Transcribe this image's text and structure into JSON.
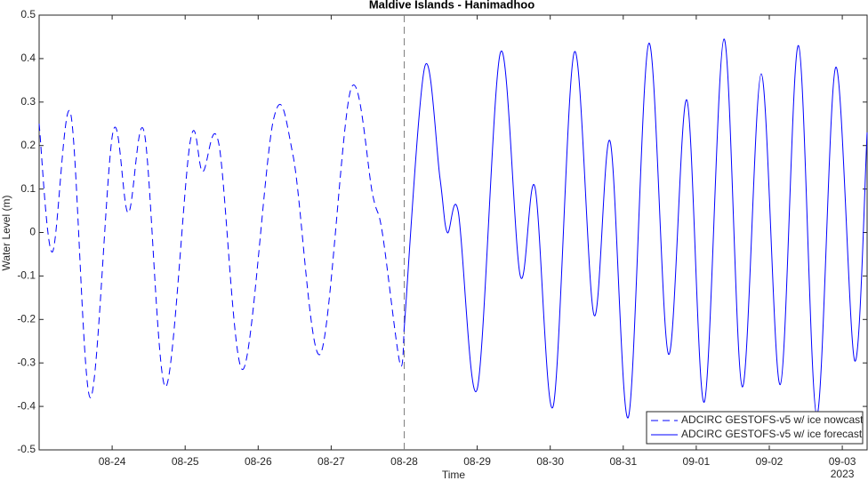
{
  "chart_data": {
    "type": "line",
    "title": "Maldive Islands - Hanimadhoo",
    "xlabel": "Time",
    "ylabel": "Water Level (m)",
    "x_year_label": "2023",
    "xlim": [
      23,
      34.34
    ],
    "ylim": [
      -0.5,
      0.5
    ],
    "xticks": [
      {
        "value": 24,
        "label": "08-24"
      },
      {
        "value": 25,
        "label": "08-25"
      },
      {
        "value": 26,
        "label": "08-26"
      },
      {
        "value": 27,
        "label": "08-27"
      },
      {
        "value": 28,
        "label": "08-28"
      },
      {
        "value": 29,
        "label": "08-29"
      },
      {
        "value": 30,
        "label": "08-30"
      },
      {
        "value": 31,
        "label": "08-31"
      },
      {
        "value": 32,
        "label": "09-01"
      },
      {
        "value": 33,
        "label": "09-02"
      },
      {
        "value": 34,
        "label": "09-03"
      }
    ],
    "yticks": [
      -0.5,
      -0.4,
      -0.3,
      -0.2,
      -0.1,
      0,
      0.1,
      0.2,
      0.3,
      0.4,
      0.5
    ],
    "vline_x": 28,
    "legend": "lower right",
    "series": [
      {
        "name": "ADCIRC GESTOFS-v5 w/ ice nowcast",
        "color": "#0000ff",
        "dashed": true,
        "x": [
          23.0,
          23.18,
          23.43,
          23.7,
          24.01,
          24.22,
          24.44,
          24.73,
          25.07,
          25.24,
          25.46,
          25.79,
          26.21,
          26.48,
          26.85,
          27.27,
          27.57,
          27.7,
          27.94,
          28.0
        ],
        "values": [
          0.25,
          -0.045,
          0.275,
          -0.38,
          0.23,
          0.045,
          0.23,
          -0.355,
          0.21,
          0.14,
          0.205,
          -0.315,
          0.26,
          0.175,
          -0.28,
          0.33,
          0.085,
          0.0,
          -0.3,
          -0.22
        ]
      },
      {
        "name": "ADCIRC GESTOFS-v5 w/ ice forecast",
        "color": "#0000ff",
        "dashed": false,
        "x": [
          28.0,
          28.28,
          28.49,
          28.59,
          28.74,
          29.0,
          29.32,
          29.59,
          29.79,
          30.04,
          30.33,
          30.6,
          30.82,
          31.07,
          31.35,
          31.62,
          31.87,
          32.11,
          32.38,
          32.63,
          32.89,
          33.15,
          33.4,
          33.65,
          33.91,
          34.17,
          34.34
        ],
        "values": [
          -0.22,
          0.38,
          0.125,
          0.0,
          0.048,
          -0.36,
          0.415,
          -0.1,
          0.105,
          -0.4,
          0.415,
          -0.19,
          0.21,
          -0.425,
          0.435,
          -0.28,
          0.305,
          -0.39,
          0.445,
          -0.355,
          0.365,
          -0.35,
          0.43,
          -0.42,
          0.38,
          -0.295,
          0.23
        ]
      }
    ]
  }
}
